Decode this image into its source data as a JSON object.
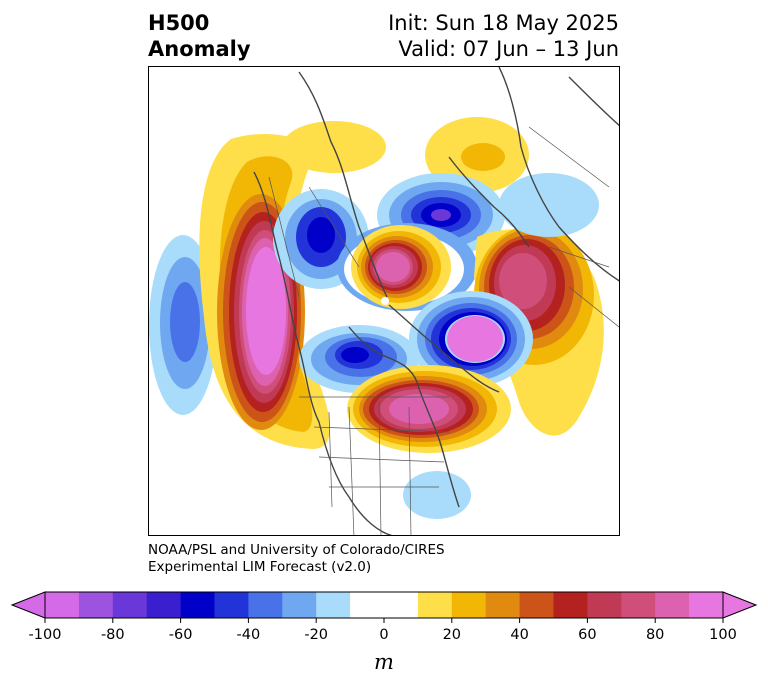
{
  "title": {
    "left_line1": "H500",
    "left_line2": "Anomaly",
    "right_line1": "Init: Sun 18 May 2025",
    "right_line2": "Valid: 07 Jun – 13 Jun"
  },
  "credit": {
    "line1": "NOAA/PSL and University of Colorado/CIRES",
    "line2": "Experimental LIM Forecast (v2.0)"
  },
  "colorbar": {
    "unit": "m",
    "tick_labels": [
      "-100",
      "-80",
      "-60",
      "-40",
      "-20",
      "0",
      "20",
      "40",
      "60",
      "80",
      "100"
    ],
    "colors": [
      "#d56ae8",
      "#9d52e0",
      "#6a37d8",
      "#3a1fcf",
      "#0000c8",
      "#2233d8",
      "#4a72e8",
      "#6fa8f0",
      "#a8dcfa",
      "#ffffff",
      "#ffffff",
      "#fedf4a",
      "#f2b705",
      "#e08a0f",
      "#cc5418",
      "#b3221e",
      "#c13a55",
      "#cf4f7a",
      "#dc62b0",
      "#e876e0"
    ],
    "under_color": "#d56ae8",
    "over_color": "#e876e0"
  },
  "map": {
    "projection": "north-polar-stereographic",
    "region": "North America and Arctic",
    "features": [
      "coastlines",
      "country-borders",
      "us-state-borders"
    ]
  }
}
